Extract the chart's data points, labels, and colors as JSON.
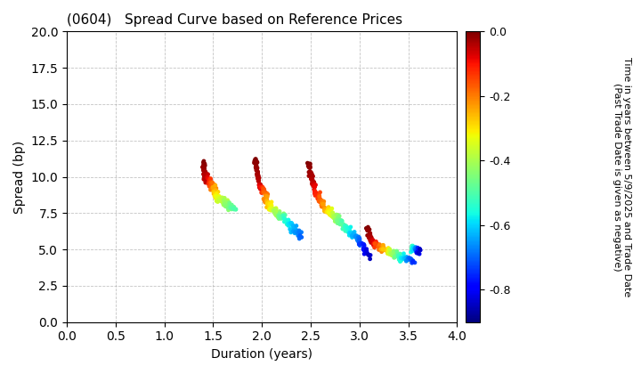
{
  "title": "(0604)   Spread Curve based on Reference Prices",
  "xlabel": "Duration (years)",
  "ylabel": "Spread (bp)",
  "xlim": [
    0.0,
    4.0
  ],
  "ylim": [
    0.0,
    20.0
  ],
  "xticks": [
    0.0,
    0.5,
    1.0,
    1.5,
    2.0,
    2.5,
    3.0,
    3.5,
    4.0
  ],
  "yticks": [
    0.0,
    2.5,
    5.0,
    7.5,
    10.0,
    12.5,
    15.0,
    17.5,
    20.0
  ],
  "colorbar_label": "Time in years between 5/9/2025 and Trade Date\n(Past Trade Date is given as negative)",
  "colorbar_ticks": [
    0.0,
    -0.2,
    -0.4,
    -0.6,
    -0.8
  ],
  "cmap": "jet",
  "vmin": -0.9,
  "vmax": 0.0,
  "background_color": "#ffffff",
  "grid_color": "#aaaaaa",
  "marker_size": 12
}
